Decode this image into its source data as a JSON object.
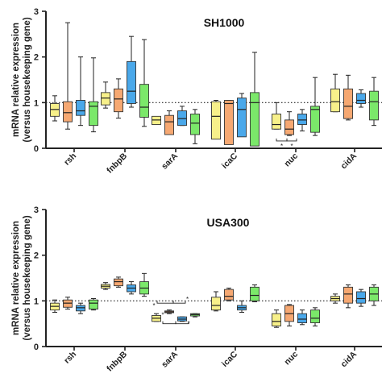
{
  "chart_data": [
    {
      "type": "box",
      "title": "SH1000",
      "ylabel_line1": "mRNA relative expression",
      "ylabel_line2": "(versus housekeeping gene)",
      "ylim": [
        0,
        3
      ],
      "yticks": [
        "0",
        "1",
        "2",
        "3"
      ],
      "reference_line": 1,
      "categories": [
        "rsh",
        "fnbpB",
        "sarA",
        "icaC",
        "nuc",
        "cidA"
      ],
      "box_colors": [
        "#f7f08a",
        "#f6a872",
        "#4aa8ea",
        "#7be86a"
      ],
      "boxes": [
        [
          [
            0.6,
            0.7,
            0.85,
            0.98,
            1.15
          ],
          [
            0.42,
            0.58,
            0.78,
            1.02,
            2.75
          ],
          [
            0.5,
            0.72,
            0.82,
            1.05,
            2.0
          ],
          [
            0.36,
            0.5,
            0.92,
            1.02,
            1.98
          ]
        ],
        [
          [
            0.88,
            0.95,
            1.1,
            1.22,
            1.45
          ],
          [
            0.66,
            0.8,
            1.08,
            1.3,
            1.52
          ],
          [
            0.9,
            0.98,
            1.25,
            1.9,
            2.45
          ],
          [
            0.48,
            0.68,
            0.9,
            1.4,
            2.38
          ]
        ],
        [
          [
            0.55,
            0.52,
            0.62,
            0.7,
            0.62
          ],
          [
            0.36,
            0.3,
            0.58,
            0.72,
            0.82
          ],
          [
            0.5,
            0.5,
            0.65,
            0.82,
            0.92
          ],
          [
            0.1,
            0.3,
            0.55,
            0.75,
            0.85
          ]
        ],
        [
          [
            0.55,
            0.2,
            0.7,
            1.02,
            1.05
          ],
          [
            0.1,
            0.08,
            0.98,
            1.05,
            1.05
          ],
          [
            0.9,
            0.25,
            0.85,
            1.1,
            1.2
          ],
          [
            0.1,
            0.05,
            1.0,
            1.22,
            2.1
          ]
        ],
        [
          [
            0.42,
            0.42,
            0.52,
            0.75,
            1.0
          ],
          [
            0.28,
            0.3,
            0.42,
            0.62,
            0.8
          ],
          [
            0.38,
            0.52,
            0.62,
            0.75,
            0.85
          ],
          [
            0.28,
            0.35,
            0.85,
            0.92,
            1.55
          ]
        ],
        [
          [
            0.8,
            0.8,
            1.02,
            1.3,
            1.62
          ],
          [
            0.62,
            0.65,
            0.92,
            1.3,
            1.6
          ],
          [
            0.9,
            0.98,
            1.05,
            1.2,
            1.28
          ],
          [
            0.5,
            0.62,
            1.02,
            1.25,
            1.55
          ]
        ]
      ],
      "annotations": [
        "*",
        "*"
      ]
    },
    {
      "type": "box",
      "title": "USA300",
      "ylabel_line1": "mRNA relative expression",
      "ylabel_line2": "(versus housekeeping gene)",
      "ylim": [
        0,
        3
      ],
      "yticks": [
        "0",
        "1",
        "2",
        "3"
      ],
      "reference_line": 1,
      "categories": [
        "rsh",
        "fnbpB",
        "sarA",
        "icaC",
        "nuc",
        "cidA"
      ],
      "box_colors": [
        "#f7f08a",
        "#f6a872",
        "#4aa8ea",
        "#7be86a"
      ],
      "boxes": [
        [
          [
            0.75,
            0.8,
            0.88,
            0.95,
            1.02
          ],
          [
            0.82,
            0.86,
            0.95,
            1.02,
            1.08
          ],
          [
            0.72,
            0.78,
            0.85,
            0.9,
            0.95
          ],
          [
            0.8,
            0.82,
            0.95,
            1.02,
            1.05
          ]
        ],
        [
          [
            1.25,
            1.28,
            1.32,
            1.36,
            1.4
          ],
          [
            1.3,
            1.33,
            1.42,
            1.48,
            1.52
          ],
          [
            1.15,
            1.2,
            1.28,
            1.35,
            1.42
          ],
          [
            1.1,
            1.15,
            1.28,
            1.42,
            1.6
          ]
        ],
        [
          [
            0.55,
            0.55,
            0.62,
            0.68,
            0.72
          ],
          [
            0.72,
            0.74,
            0.76,
            0.78,
            0.8
          ],
          [
            0.55,
            0.56,
            0.6,
            0.65,
            0.65
          ],
          [
            0.65,
            0.67,
            0.7,
            0.72,
            0.72
          ]
        ],
        [
          [
            0.78,
            0.8,
            0.9,
            1.08,
            1.2
          ],
          [
            1.0,
            1.02,
            1.1,
            1.25,
            1.28
          ],
          [
            0.75,
            0.8,
            0.85,
            0.9,
            1.0
          ],
          [
            0.98,
            1.0,
            1.12,
            1.3,
            1.35
          ]
        ],
        [
          [
            0.42,
            0.45,
            0.55,
            0.72,
            0.8
          ],
          [
            0.45,
            0.55,
            0.72,
            0.9,
            0.92
          ],
          [
            0.48,
            0.52,
            0.6,
            0.72,
            0.8
          ],
          [
            0.45,
            0.52,
            0.62,
            0.8,
            0.85
          ]
        ],
        [
          [
            0.95,
            1.0,
            1.05,
            1.1,
            1.15
          ],
          [
            0.85,
            0.95,
            1.15,
            1.3,
            1.35
          ],
          [
            0.88,
            0.95,
            1.05,
            1.2,
            1.25
          ],
          [
            0.9,
            1.0,
            1.15,
            1.3,
            1.35
          ]
        ]
      ],
      "annotations": [
        "*",
        "*",
        "*",
        "*"
      ]
    }
  ]
}
